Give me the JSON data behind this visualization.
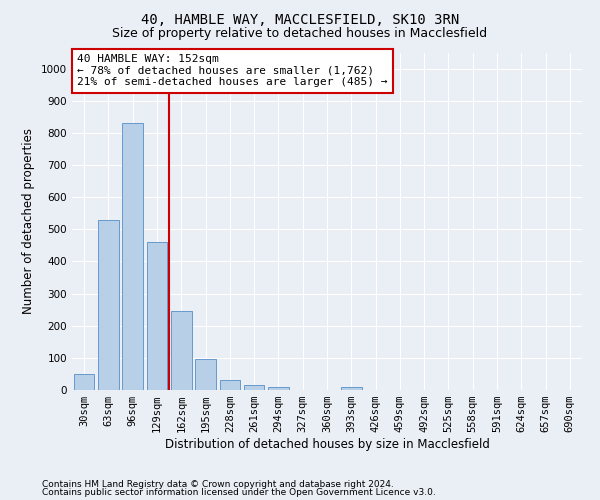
{
  "title1": "40, HAMBLE WAY, MACCLESFIELD, SK10 3RN",
  "title2": "Size of property relative to detached houses in Macclesfield",
  "xlabel": "Distribution of detached houses by size in Macclesfield",
  "ylabel": "Number of detached properties",
  "bar_labels": [
    "30sqm",
    "63sqm",
    "96sqm",
    "129sqm",
    "162sqm",
    "195sqm",
    "228sqm",
    "261sqm",
    "294sqm",
    "327sqm",
    "360sqm",
    "393sqm",
    "426sqm",
    "459sqm",
    "492sqm",
    "525sqm",
    "558sqm",
    "591sqm",
    "624sqm",
    "657sqm",
    "690sqm"
  ],
  "bar_values": [
    50,
    530,
    830,
    460,
    245,
    95,
    30,
    17,
    10,
    0,
    0,
    10,
    0,
    0,
    0,
    0,
    0,
    0,
    0,
    0,
    0
  ],
  "bar_color": "#b8cfe8",
  "bar_edge_color": "#6699cc",
  "vline_color": "#cc0000",
  "annotation_text": "40 HAMBLE WAY: 152sqm\n← 78% of detached houses are smaller (1,762)\n21% of semi-detached houses are larger (485) →",
  "annotation_box_color": "#ffffff",
  "annotation_box_edge": "#cc0000",
  "ylim": [
    0,
    1050
  ],
  "yticks": [
    0,
    100,
    200,
    300,
    400,
    500,
    600,
    700,
    800,
    900,
    1000
  ],
  "bg_color": "#eaeef5",
  "plot_bg_color": "#eaeef5",
  "grid_color": "#ffffff",
  "footer1": "Contains HM Land Registry data © Crown copyright and database right 2024.",
  "footer2": "Contains public sector information licensed under the Open Government Licence v3.0.",
  "title1_fontsize": 10,
  "title2_fontsize": 9,
  "xlabel_fontsize": 8.5,
  "ylabel_fontsize": 8.5,
  "tick_fontsize": 7.5,
  "annotation_fontsize": 8,
  "footer_fontsize": 6.5
}
